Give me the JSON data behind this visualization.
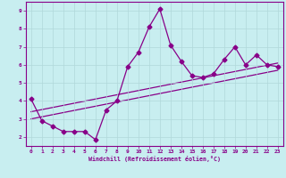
{
  "xlabel": "Windchill (Refroidissement éolien,°C)",
  "background_color": "#c8eef0",
  "line_color": "#880088",
  "grid_color": "#b0d8da",
  "xlim": [
    -0.5,
    23.5
  ],
  "ylim": [
    1.5,
    9.5
  ],
  "yticks": [
    2,
    3,
    4,
    5,
    6,
    7,
    8,
    9
  ],
  "xticks": [
    0,
    1,
    2,
    3,
    4,
    5,
    6,
    7,
    8,
    9,
    10,
    11,
    12,
    13,
    14,
    15,
    16,
    17,
    18,
    19,
    20,
    21,
    22,
    23
  ],
  "series1_x": [
    0,
    1,
    2,
    3,
    4,
    5,
    6,
    7,
    8,
    9,
    10,
    11,
    12,
    13,
    14,
    15,
    16,
    17,
    18,
    19,
    20,
    21,
    22,
    23
  ],
  "series1_y": [
    4.1,
    2.9,
    2.6,
    2.3,
    2.3,
    2.3,
    1.85,
    3.5,
    4.0,
    5.9,
    6.7,
    8.1,
    9.1,
    7.1,
    6.2,
    5.4,
    5.3,
    5.5,
    6.3,
    7.0,
    6.0,
    6.55,
    6.0,
    5.9
  ],
  "series2_x": [
    0,
    23
  ],
  "series2_y": [
    3.0,
    5.7
  ],
  "series3_x": [
    0,
    23
  ],
  "series3_y": [
    3.4,
    6.1
  ],
  "marker": "D",
  "markersize": 2.5,
  "linewidth": 0.9
}
